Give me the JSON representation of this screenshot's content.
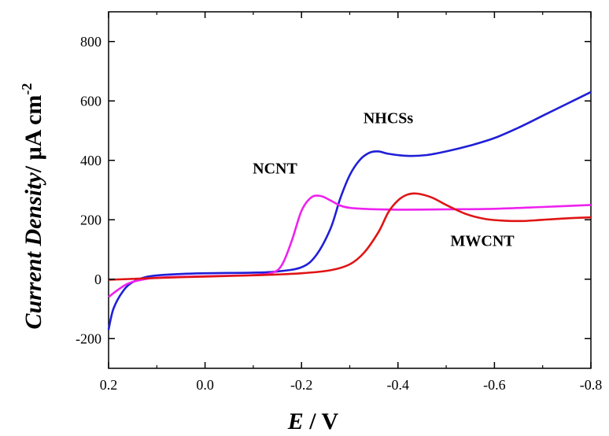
{
  "chart_data": {
    "type": "line",
    "xlabel_parts": [
      "E",
      " / V"
    ],
    "ylabel_parts": [
      "Current Density",
      "/ μA cm",
      "-2"
    ],
    "xlim": [
      0.2,
      -0.8
    ],
    "ylim": [
      -300,
      900
    ],
    "x_ticks": [
      "0.2",
      "0.0",
      "-0.2",
      "-0.4",
      "-0.6",
      "-0.8"
    ],
    "x_tick_values": [
      0.2,
      0.0,
      -0.2,
      -0.4,
      -0.6,
      -0.8
    ],
    "y_ticks": [
      "-200",
      "0",
      "200",
      "400",
      "600",
      "800"
    ],
    "y_tick_values": [
      -200,
      0,
      200,
      400,
      600,
      800
    ],
    "grid": false,
    "series": [
      {
        "name": "NHCSs",
        "color": "#1f1fd6",
        "x": [
          0.2,
          0.19,
          0.17,
          0.15,
          0.12,
          0.08,
          0.0,
          -0.1,
          -0.15,
          -0.2,
          -0.23,
          -0.26,
          -0.28,
          -0.3,
          -0.32,
          -0.34,
          -0.36,
          -0.38,
          -0.42,
          -0.46,
          -0.5,
          -0.55,
          -0.6,
          -0.65,
          -0.7,
          -0.75,
          -0.8
        ],
        "y": [
          -170,
          -100,
          -40,
          -10,
          8,
          15,
          20,
          22,
          26,
          40,
          80,
          170,
          270,
          350,
          400,
          425,
          430,
          422,
          415,
          418,
          430,
          450,
          475,
          510,
          550,
          590,
          630
        ]
      },
      {
        "name": "NCNT",
        "color": "#ee22ee",
        "x": [
          0.2,
          0.18,
          0.16,
          0.14,
          0.1,
          0.0,
          -0.1,
          -0.14,
          -0.16,
          -0.18,
          -0.2,
          -0.22,
          -0.24,
          -0.26,
          -0.28,
          -0.3,
          -0.34,
          -0.4,
          -0.5,
          -0.6,
          -0.7,
          -0.8
        ],
        "y": [
          -60,
          -35,
          -15,
          -5,
          5,
          10,
          14,
          22,
          50,
          130,
          230,
          275,
          280,
          265,
          248,
          240,
          236,
          234,
          235,
          237,
          243,
          250
        ]
      },
      {
        "name": "MWCNT",
        "color": "#e01414",
        "x": [
          0.2,
          0.1,
          0.0,
          -0.1,
          -0.2,
          -0.26,
          -0.3,
          -0.33,
          -0.36,
          -0.38,
          -0.4,
          -0.42,
          -0.44,
          -0.47,
          -0.5,
          -0.54,
          -0.58,
          -0.62,
          -0.66,
          -0.7,
          -0.75,
          -0.8
        ],
        "y": [
          -2,
          4,
          9,
          13,
          20,
          30,
          50,
          90,
          160,
          225,
          265,
          285,
          288,
          275,
          250,
          220,
          203,
          197,
          196,
          200,
          205,
          208
        ]
      }
    ],
    "annotations": [
      {
        "text": "NHCSs",
        "x": -0.38,
        "y": 525
      },
      {
        "text": "NCNT",
        "x": -0.145,
        "y": 355
      },
      {
        "text": "MWCNT",
        "x": -0.575,
        "y": 112
      }
    ]
  }
}
